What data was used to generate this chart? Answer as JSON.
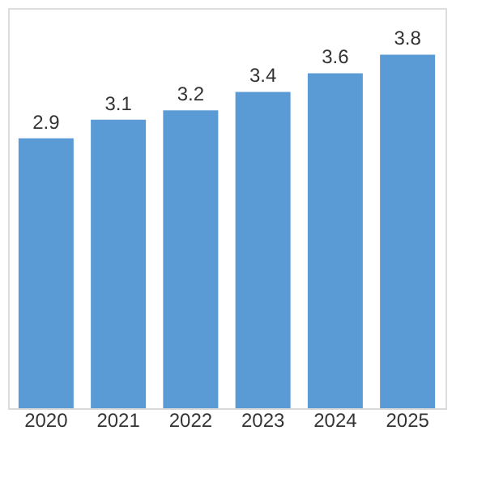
{
  "chart_data": {
    "type": "bar",
    "categories": [
      "2020",
      "2021",
      "2022",
      "2023",
      "2024",
      "2025"
    ],
    "values": [
      2.9,
      3.1,
      3.2,
      3.4,
      3.6,
      3.8
    ],
    "color": "#5b9bd5",
    "ylim": [
      0,
      4.3
    ],
    "data_labels": true,
    "tick_labels": "x",
    "grid": false
  }
}
